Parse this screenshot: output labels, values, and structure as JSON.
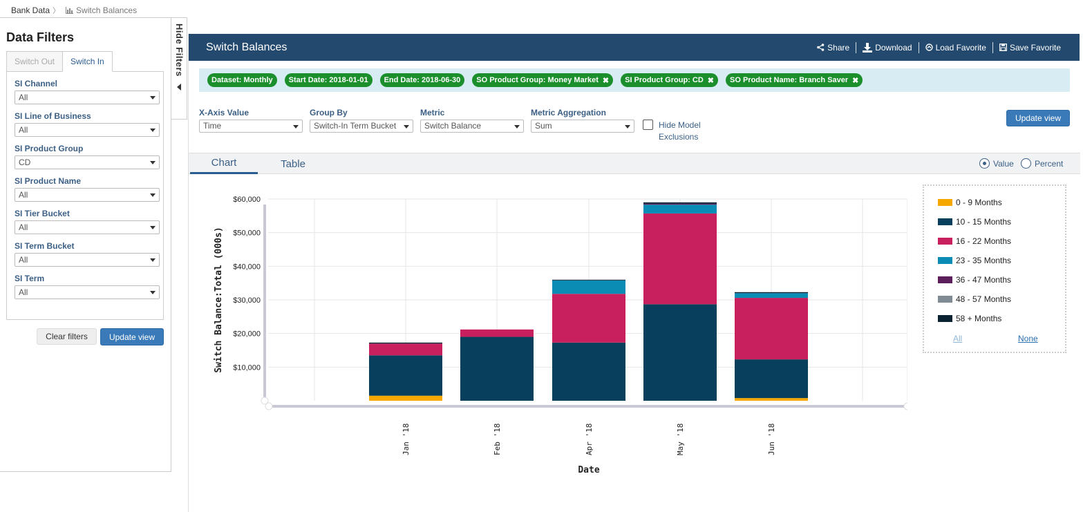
{
  "breadcrumb": {
    "root": "Bank Data",
    "current": "Switch Balances"
  },
  "filters": {
    "title": "Data Filters",
    "tabs": [
      "Switch Out",
      "Switch In"
    ],
    "active_tab": "Switch In",
    "fields": [
      {
        "label": "SI Channel",
        "value": "All"
      },
      {
        "label": "SI Line of Business",
        "value": "All"
      },
      {
        "label": "SI Product Group",
        "value": "CD"
      },
      {
        "label": "SI Product Name",
        "value": "All"
      },
      {
        "label": "SI Tier Bucket",
        "value": "All"
      },
      {
        "label": "SI Term Bucket",
        "value": "All"
      },
      {
        "label": "SI Term",
        "value": "All"
      }
    ],
    "clear_label": "Clear filters",
    "update_label": "Update view"
  },
  "hide_filters": {
    "label": "Hide Filters"
  },
  "header": {
    "title": "Switch Balances",
    "actions": {
      "share": "Share",
      "download": "Download",
      "load": "Load Favorite",
      "save": "Save Favorite"
    }
  },
  "chips": [
    {
      "text": "Dataset: Monthly",
      "removable": false
    },
    {
      "text": "Start Date: 2018-01-01",
      "removable": false
    },
    {
      "text": "End Date: 2018-06-30",
      "removable": false
    },
    {
      "text": "SO Product Group: Money Market",
      "removable": true
    },
    {
      "text": "SI Product Group: CD",
      "removable": true
    },
    {
      "text": "SO Product Name: Branch Saver",
      "removable": true
    }
  ],
  "controls": {
    "xaxis": {
      "label": "X-Axis Value",
      "value": "Time"
    },
    "groupby": {
      "label": "Group By",
      "value": "Switch-In Term Bucket"
    },
    "metric": {
      "label": "Metric",
      "value": "Switch Balance"
    },
    "aggregation": {
      "label": "Metric Aggregation",
      "value": "Sum"
    },
    "hide_model": "Hide Model Exclusions",
    "update_label": "Update view"
  },
  "view": {
    "tabs": {
      "chart": "Chart",
      "table": "Table"
    },
    "radio": {
      "value": "Value",
      "percent": "Percent"
    },
    "selected": "Value"
  },
  "legend": {
    "all": "All",
    "none": "None",
    "link_color": "#2a6fb0",
    "link_disabled_color": "#8fb6d9"
  },
  "chart_data": {
    "type": "bar",
    "stacked": true,
    "xlabel": "Date",
    "ylabel": "Switch Balance:Total (000s)",
    "ylim": [
      0,
      60000
    ],
    "yticks": [
      "$10,000",
      "$20,000",
      "$30,000",
      "$40,000",
      "$50,000",
      "$60,000"
    ],
    "ytick_values": [
      10000,
      20000,
      30000,
      40000,
      50000,
      60000
    ],
    "grid": true,
    "legend_position": "right",
    "categories": [
      "Jan '18",
      "Feb '18",
      "Apr '18",
      "May '18",
      "Jun '18"
    ],
    "series": [
      {
        "name": "0 - 9 Months",
        "color": "#f5a800",
        "values": [
          1500,
          0,
          0,
          0,
          800
        ]
      },
      {
        "name": "10 - 15 Months",
        "color": "#073f5c",
        "values": [
          12000,
          19000,
          17300,
          28700,
          11500
        ]
      },
      {
        "name": "16 - 22 Months",
        "color": "#c8205f",
        "values": [
          3500,
          2200,
          14500,
          27000,
          18300
        ]
      },
      {
        "name": "23 - 35 Months",
        "color": "#0a8cb5",
        "values": [
          0,
          0,
          4000,
          2600,
          1400
        ]
      },
      {
        "name": "36 - 47 Months",
        "color": "#5c1f5b",
        "values": [
          0,
          0,
          0,
          300,
          0
        ]
      },
      {
        "name": "48 - 57 Months",
        "color": "#7f8a93",
        "values": [
          0,
          0,
          0,
          0,
          0
        ]
      },
      {
        "name": "58 + Months",
        "color": "#0b2233",
        "values": [
          300,
          0,
          200,
          400,
          300
        ]
      }
    ]
  }
}
